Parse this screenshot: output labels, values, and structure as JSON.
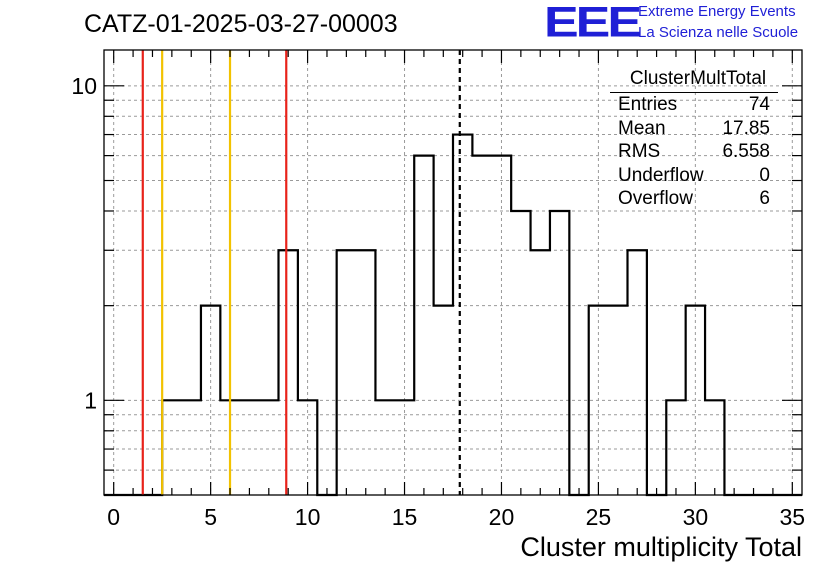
{
  "title": "CATZ-01-2025-03-27-00003",
  "logo": {
    "mark": "EEE",
    "line1": "Extreme Energy Events",
    "line2": "La Scienza nelle Scuole",
    "color": "#1f1fd6"
  },
  "stats": {
    "name": "ClusterMultTotal",
    "rows": [
      {
        "label": "Entries",
        "value": "74"
      },
      {
        "label": "Mean",
        "value": "17.85"
      },
      {
        "label": "RMS",
        "value": "6.558"
      },
      {
        "label": "Underflow",
        "value": "0"
      },
      {
        "label": "Overflow",
        "value": "6"
      }
    ]
  },
  "chart_data": {
    "type": "histogram",
    "title": "CATZ-01-2025-03-27-00003",
    "xlabel": "Cluster multiplicity Total",
    "ylabel": "",
    "xlim": [
      -0.5,
      35.5
    ],
    "ylim": [
      0.5,
      13
    ],
    "yscale": "log",
    "grid": true,
    "bin_width": 1,
    "bin_centers": [
      0,
      1,
      2,
      3,
      4,
      5,
      6,
      7,
      8,
      9,
      10,
      11,
      12,
      13,
      14,
      15,
      16,
      17,
      18,
      19,
      20,
      21,
      22,
      23,
      24,
      25,
      26,
      27,
      28,
      29,
      30,
      31,
      32,
      33,
      34,
      35
    ],
    "counts": [
      0,
      0,
      0,
      1,
      1,
      2,
      1,
      1,
      1,
      3,
      1,
      0,
      3,
      3,
      1,
      1,
      6,
      2,
      7,
      6,
      6,
      4,
      3,
      4,
      0,
      2,
      2,
      3,
      0,
      1,
      2,
      1,
      0,
      0,
      0,
      0
    ],
    "x_ticks": [
      0,
      5,
      10,
      15,
      20,
      25,
      30,
      35
    ],
    "y_ticks": [
      1,
      10
    ],
    "vertical_lines": [
      {
        "x": 1.5,
        "color": "#e8221a",
        "style": "solid"
      },
      {
        "x": 2.5,
        "color": "#f2c200",
        "style": "solid"
      },
      {
        "x": 6.0,
        "color": "#f2c200",
        "style": "solid"
      },
      {
        "x": 8.9,
        "color": "#e8221a",
        "style": "solid"
      },
      {
        "x": 17.85,
        "color": "#000000",
        "style": "dashed"
      }
    ]
  }
}
